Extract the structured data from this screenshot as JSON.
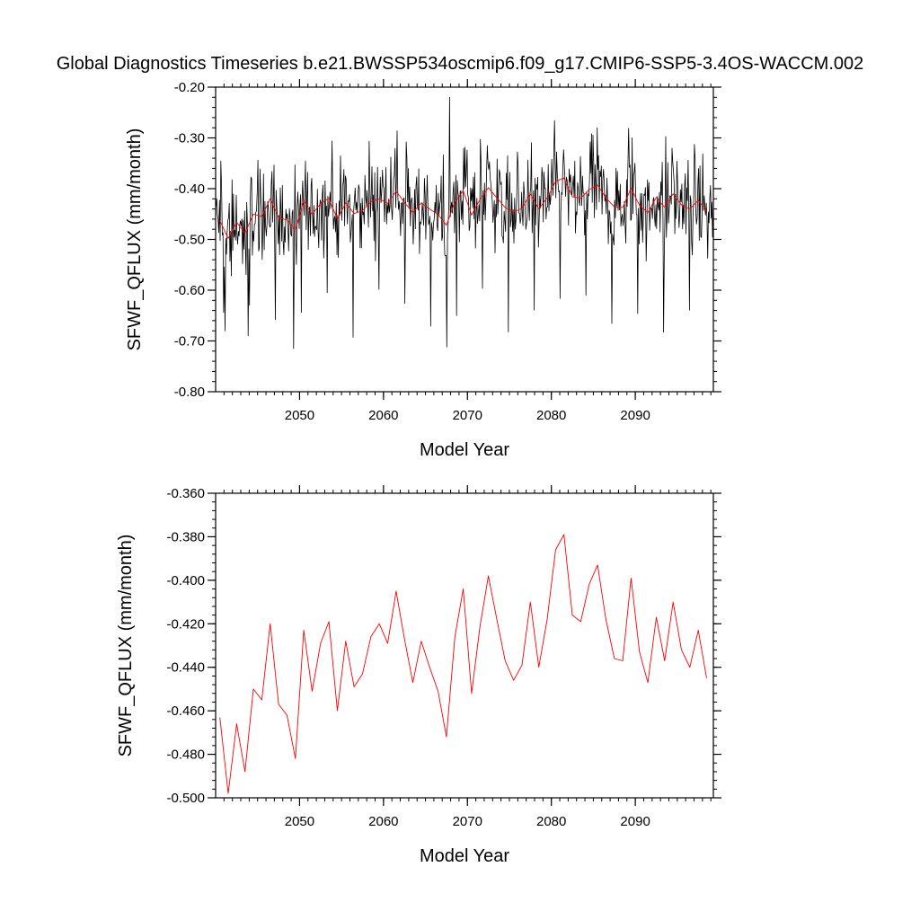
{
  "title": "Global Diagnostics Timeseries b.e21.BWSSP534oscmip6.f09_g17.CMIP6-SSP5-3.4OS-WACCM.002",
  "colors": {
    "monthly": "#000000",
    "annual": "#ff0000",
    "axis": "#000000"
  },
  "chart_data": [
    {
      "type": "line",
      "title": "",
      "xlabel": "Model Year",
      "ylabel": "SFWF_QFLUX (mm/month)",
      "xlim": [
        2040,
        2099.3
      ],
      "ylim": [
        -0.8,
        -0.2
      ],
      "xticks": [
        2050,
        2060,
        2070,
        2080,
        2090
      ],
      "xtick_labels": [
        "2050",
        "2060",
        "2070",
        "2080",
        "2090"
      ],
      "yticks": [
        -0.8,
        -0.7,
        -0.6,
        -0.5,
        -0.4,
        -0.3,
        -0.2
      ],
      "ytick_labels": [
        "-0.80",
        "-0.70",
        "-0.60",
        "-0.50",
        "-0.40",
        "-0.30",
        "-0.20"
      ],
      "series": [
        {
          "name": "monthly",
          "color": "#000000",
          "generated_monthly": true,
          "start": 2040.04,
          "step": 0.0833333,
          "count": 712,
          "mean": -0.435,
          "spread": 0.07,
          "peak_max": -0.22,
          "peak_min": -0.715
        },
        {
          "name": "annual",
          "color": "#ff0000",
          "x_start": 2040.5,
          "x_step": 1,
          "values": [
            -0.463,
            -0.498,
            -0.466,
            -0.488,
            -0.45,
            -0.455,
            -0.42,
            -0.457,
            -0.462,
            -0.482,
            -0.423,
            -0.451,
            -0.429,
            -0.419,
            -0.46,
            -0.428,
            -0.449,
            -0.443,
            -0.426,
            -0.42,
            -0.429,
            -0.405,
            -0.427,
            -0.447,
            -0.428,
            -0.44,
            -0.451,
            -0.472,
            -0.426,
            -0.404,
            -0.452,
            -0.421,
            -0.398,
            -0.418,
            -0.437,
            -0.446,
            -0.439,
            -0.41,
            -0.44,
            -0.418,
            -0.386,
            -0.379,
            -0.416,
            -0.419,
            -0.402,
            -0.393,
            -0.418,
            -0.436,
            -0.437,
            -0.399,
            -0.433,
            -0.447,
            -0.417,
            -0.437,
            -0.41,
            -0.432,
            -0.44,
            -0.423,
            -0.445
          ]
        }
      ]
    },
    {
      "type": "line",
      "title": "",
      "xlabel": "Model Year",
      "ylabel": "SFWF_QFLUX (mm/month)",
      "xlim": [
        2040,
        2099.3
      ],
      "ylim": [
        -0.5,
        -0.36
      ],
      "xticks": [
        2050,
        2060,
        2070,
        2080,
        2090
      ],
      "xtick_labels": [
        "2050",
        "2060",
        "2070",
        "2080",
        "2090"
      ],
      "yticks": [
        -0.5,
        -0.48,
        -0.46,
        -0.44,
        -0.42,
        -0.4,
        -0.38,
        -0.36
      ],
      "ytick_labels": [
        "-0.500",
        "-0.480",
        "-0.460",
        "-0.440",
        "-0.420",
        "-0.400",
        "-0.380",
        "-0.360"
      ],
      "series": [
        {
          "name": "annual",
          "color": "#ff0000",
          "x_start": 2040.5,
          "x_step": 1,
          "values": [
            -0.463,
            -0.498,
            -0.466,
            -0.488,
            -0.45,
            -0.455,
            -0.42,
            -0.457,
            -0.462,
            -0.482,
            -0.423,
            -0.451,
            -0.429,
            -0.419,
            -0.46,
            -0.428,
            -0.449,
            -0.443,
            -0.426,
            -0.42,
            -0.429,
            -0.405,
            -0.427,
            -0.447,
            -0.428,
            -0.44,
            -0.451,
            -0.472,
            -0.426,
            -0.404,
            -0.452,
            -0.421,
            -0.398,
            -0.418,
            -0.437,
            -0.446,
            -0.439,
            -0.41,
            -0.44,
            -0.418,
            -0.386,
            -0.379,
            -0.416,
            -0.419,
            -0.402,
            -0.393,
            -0.418,
            -0.436,
            -0.437,
            -0.399,
            -0.433,
            -0.447,
            -0.417,
            -0.437,
            -0.41,
            -0.432,
            -0.44,
            -0.423,
            -0.445
          ]
        }
      ]
    }
  ]
}
